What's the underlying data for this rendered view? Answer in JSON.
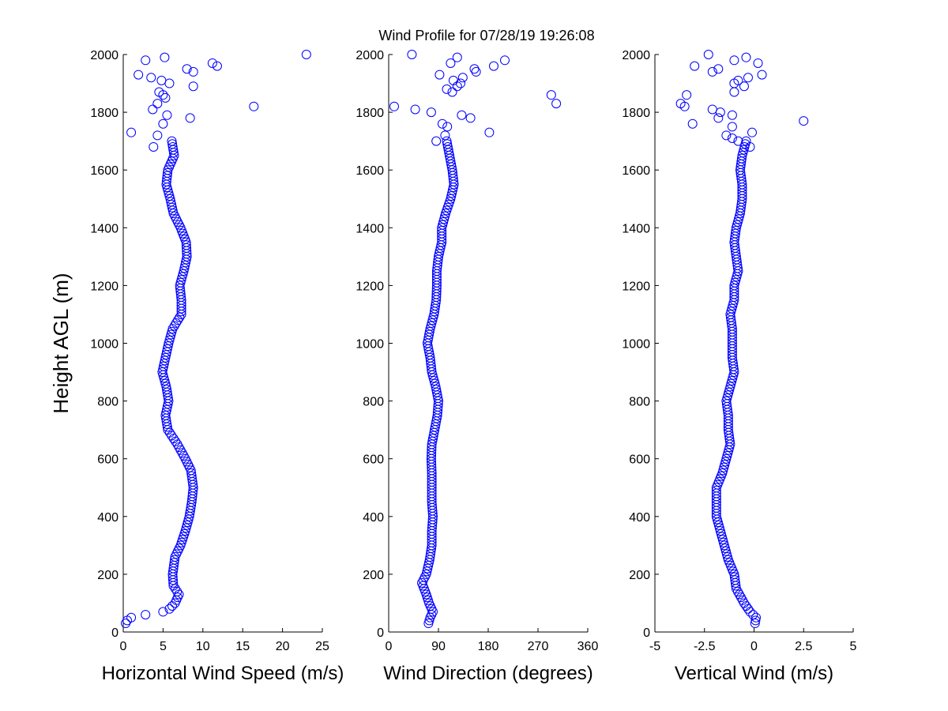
{
  "title": "Wind Profile for  07/28/19 19:26:08",
  "colors": {
    "marker": "#0000ff",
    "axis": "#000000",
    "background": "#ffffff"
  },
  "chart_data": [
    {
      "type": "scatter",
      "marker": "circle-open",
      "xlabel": "Horizontal Wind Speed (m/s)",
      "ylabel": "Height AGL (m)",
      "xlim": [
        0,
        25
      ],
      "ylim": [
        0,
        2000
      ],
      "xticks": [
        0,
        5,
        10,
        15,
        20,
        25
      ],
      "xtick_labels": [
        "0",
        "5",
        "10",
        "15",
        "20",
        "25"
      ],
      "yticks": [
        0,
        200,
        400,
        600,
        800,
        1000,
        1200,
        1400,
        1600,
        1800,
        2000
      ],
      "ytick_labels": [
        "0",
        "200",
        "400",
        "600",
        "800",
        "1000",
        "1200",
        "1400",
        "1600",
        "1800",
        "2000"
      ],
      "anchors": [
        [
          30,
          0.3
        ],
        [
          40,
          0.5
        ],
        [
          50,
          1.0
        ],
        [
          60,
          2.8
        ],
        [
          70,
          5.0
        ],
        [
          80,
          5.8
        ],
        [
          100,
          6.5
        ],
        [
          130,
          7.0
        ],
        [
          160,
          6.3
        ],
        [
          200,
          6.2
        ],
        [
          260,
          6.5
        ],
        [
          300,
          7.2
        ],
        [
          350,
          7.8
        ],
        [
          400,
          8.3
        ],
        [
          450,
          8.6
        ],
        [
          500,
          8.8
        ],
        [
          560,
          8.5
        ],
        [
          600,
          7.8
        ],
        [
          650,
          6.8
        ],
        [
          700,
          5.6
        ],
        [
          750,
          5.3
        ],
        [
          800,
          5.7
        ],
        [
          850,
          5.4
        ],
        [
          900,
          4.9
        ],
        [
          950,
          5.3
        ],
        [
          1000,
          5.7
        ],
        [
          1050,
          6.2
        ],
        [
          1100,
          7.3
        ],
        [
          1150,
          7.3
        ],
        [
          1200,
          7.1
        ],
        [
          1250,
          7.6
        ],
        [
          1300,
          8.0
        ],
        [
          1350,
          7.9
        ],
        [
          1400,
          7.2
        ],
        [
          1450,
          6.3
        ],
        [
          1500,
          5.9
        ],
        [
          1550,
          5.4
        ],
        [
          1600,
          5.6
        ],
        [
          1650,
          6.4
        ],
        [
          1700,
          6.1
        ]
      ],
      "scattered": [
        [
          1730,
          1.0
        ],
        [
          1680,
          3.8
        ],
        [
          1720,
          4.3
        ],
        [
          1760,
          5.0
        ],
        [
          1780,
          8.4
        ],
        [
          1790,
          5.5
        ],
        [
          1810,
          3.7
        ],
        [
          1820,
          16.4
        ],
        [
          1830,
          4.3
        ],
        [
          1850,
          5.3
        ],
        [
          1860,
          5.0
        ],
        [
          1870,
          4.5
        ],
        [
          1890,
          8.8
        ],
        [
          1900,
          5.8
        ],
        [
          1910,
          4.8
        ],
        [
          1920,
          3.5
        ],
        [
          1930,
          1.9
        ],
        [
          1940,
          8.8
        ],
        [
          1950,
          8.0
        ],
        [
          1960,
          11.8
        ],
        [
          1970,
          11.2
        ],
        [
          1980,
          2.8
        ],
        [
          1990,
          5.2
        ],
        [
          2000,
          23.0
        ]
      ]
    },
    {
      "type": "scatter",
      "marker": "circle-open",
      "xlabel": "Wind Direction (degrees)",
      "ylabel": "",
      "xlim": [
        0,
        360
      ],
      "ylim": [
        0,
        2000
      ],
      "xticks": [
        0,
        90,
        180,
        270,
        360
      ],
      "xtick_labels": [
        "0",
        "90",
        "180",
        "270",
        "360"
      ],
      "yticks": [
        0,
        200,
        400,
        600,
        800,
        1000,
        1200,
        1400,
        1600,
        1800,
        2000
      ],
      "ytick_labels": [
        "0",
        "200",
        "400",
        "600",
        "800",
        "1000",
        "1200",
        "1400",
        "1600",
        "1800",
        "2000"
      ],
      "anchors": [
        [
          30,
          72
        ],
        [
          50,
          75
        ],
        [
          70,
          80
        ],
        [
          100,
          73
        ],
        [
          130,
          68
        ],
        [
          170,
          60
        ],
        [
          200,
          68
        ],
        [
          250,
          74
        ],
        [
          300,
          78
        ],
        [
          350,
          78
        ],
        [
          400,
          80
        ],
        [
          450,
          78
        ],
        [
          500,
          78
        ],
        [
          550,
          78
        ],
        [
          600,
          77
        ],
        [
          650,
          78
        ],
        [
          700,
          83
        ],
        [
          750,
          88
        ],
        [
          800,
          90
        ],
        [
          850,
          85
        ],
        [
          900,
          78
        ],
        [
          950,
          75
        ],
        [
          1000,
          70
        ],
        [
          1050,
          75
        ],
        [
          1100,
          82
        ],
        [
          1150,
          86
        ],
        [
          1200,
          87
        ],
        [
          1250,
          87
        ],
        [
          1300,
          90
        ],
        [
          1350,
          96
        ],
        [
          1400,
          96
        ],
        [
          1450,
          103
        ],
        [
          1500,
          112
        ],
        [
          1550,
          118
        ],
        [
          1600,
          115
        ],
        [
          1650,
          110
        ],
        [
          1700,
          105
        ]
      ],
      "scattered": [
        [
          1700,
          86
        ],
        [
          1720,
          102
        ],
        [
          1730,
          182
        ],
        [
          1750,
          106
        ],
        [
          1760,
          97
        ],
        [
          1780,
          148
        ],
        [
          1790,
          132
        ],
        [
          1800,
          77
        ],
        [
          1810,
          48
        ],
        [
          1820,
          10
        ],
        [
          1830,
          303
        ],
        [
          1860,
          294
        ],
        [
          1870,
          115
        ],
        [
          1880,
          105
        ],
        [
          1890,
          124
        ],
        [
          1900,
          130
        ],
        [
          1910,
          117
        ],
        [
          1920,
          134
        ],
        [
          1930,
          92
        ],
        [
          1940,
          158
        ],
        [
          1950,
          155
        ],
        [
          1960,
          190
        ],
        [
          1970,
          112
        ],
        [
          1980,
          210
        ],
        [
          1990,
          124
        ],
        [
          2000,
          42
        ]
      ]
    },
    {
      "type": "scatter",
      "marker": "circle-open",
      "xlabel": "Vertical Wind (m/s)",
      "ylabel": "",
      "xlim": [
        -5,
        5
      ],
      "ylim": [
        0,
        2000
      ],
      "xticks": [
        -5,
        -2.5,
        0,
        2.5,
        5
      ],
      "xtick_labels": [
        "-5",
        "-2.5",
        "0",
        "2.5",
        "5"
      ],
      "yticks": [
        0,
        200,
        400,
        600,
        800,
        1000,
        1200,
        1400,
        1600,
        1800,
        2000
      ],
      "ytick_labels": [
        "0",
        "200",
        "400",
        "600",
        "800",
        "1000",
        "1200",
        "1400",
        "1600",
        "1800",
        "2000"
      ],
      "anchors": [
        [
          30,
          0.05
        ],
        [
          50,
          0.1
        ],
        [
          70,
          -0.2
        ],
        [
          100,
          -0.5
        ],
        [
          150,
          -0.9
        ],
        [
          200,
          -1.0
        ],
        [
          250,
          -1.3
        ],
        [
          300,
          -1.5
        ],
        [
          350,
          -1.7
        ],
        [
          400,
          -1.9
        ],
        [
          450,
          -1.9
        ],
        [
          500,
          -1.9
        ],
        [
          550,
          -1.6
        ],
        [
          600,
          -1.4
        ],
        [
          650,
          -1.2
        ],
        [
          700,
          -1.3
        ],
        [
          750,
          -1.3
        ],
        [
          800,
          -1.4
        ],
        [
          850,
          -1.2
        ],
        [
          900,
          -1.0
        ],
        [
          950,
          -1.1
        ],
        [
          1000,
          -1.1
        ],
        [
          1050,
          -1.1
        ],
        [
          1100,
          -1.2
        ],
        [
          1150,
          -1.0
        ],
        [
          1200,
          -1.0
        ],
        [
          1250,
          -0.8
        ],
        [
          1300,
          -0.9
        ],
        [
          1350,
          -1.0
        ],
        [
          1400,
          -0.9
        ],
        [
          1450,
          -0.7
        ],
        [
          1500,
          -0.6
        ],
        [
          1550,
          -0.6
        ],
        [
          1600,
          -0.7
        ],
        [
          1650,
          -0.6
        ],
        [
          1700,
          -0.4
        ]
      ],
      "scattered": [
        [
          1680,
          -0.2
        ],
        [
          1700,
          -0.8
        ],
        [
          1710,
          -1.1
        ],
        [
          1720,
          -1.4
        ],
        [
          1730,
          -0.1
        ],
        [
          1750,
          -1.1
        ],
        [
          1760,
          -3.1
        ],
        [
          1770,
          2.5
        ],
        [
          1780,
          -1.8
        ],
        [
          1790,
          -1.1
        ],
        [
          1800,
          -1.7
        ],
        [
          1810,
          -2.1
        ],
        [
          1820,
          -3.5
        ],
        [
          1830,
          -3.7
        ],
        [
          1860,
          -3.4
        ],
        [
          1870,
          -1.0
        ],
        [
          1890,
          -0.5
        ],
        [
          1900,
          -1.0
        ],
        [
          1910,
          -0.8
        ],
        [
          1920,
          -0.3
        ],
        [
          1930,
          0.4
        ],
        [
          1940,
          -2.1
        ],
        [
          1950,
          -1.8
        ],
        [
          1960,
          -3.0
        ],
        [
          1970,
          0.2
        ],
        [
          1980,
          -1.0
        ],
        [
          1990,
          -0.4
        ],
        [
          2000,
          -2.3
        ]
      ]
    }
  ]
}
